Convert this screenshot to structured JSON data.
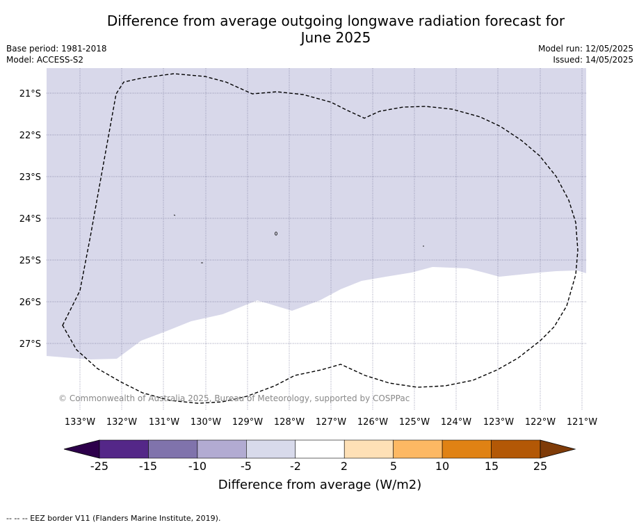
{
  "title_line1": "Difference from average outgoing longwave radiation forecast for",
  "title_line2": "June 2025",
  "base_period": "Base period: 1981-2018",
  "model": "Model: ACCESS-S2",
  "model_run": "Model run: 12/05/2025",
  "issued": "Issued: 14/05/2025",
  "copyright": "© Commonwealth of Australia 2025, Bureau of Meteorology, supported by COSPPac",
  "map": {
    "lat_labels": [
      "21°S",
      "22°S",
      "23°S",
      "24°S",
      "25°S",
      "26°S",
      "27°S"
    ],
    "lon_labels": [
      "133°W",
      "132°W",
      "131°W",
      "130°W",
      "129°W",
      "128°W",
      "127°W",
      "126°W",
      "125°W",
      "124°W",
      "123°W",
      "122°W",
      "121°W"
    ],
    "region_colors": {
      "-5_to_-2": "#d8d8ea",
      "-2_to_2": "#ffffff"
    }
  },
  "colorbar": {
    "label": "Difference from average (W/m2)",
    "ticks": [
      "-25",
      "-15",
      "-10",
      "-5",
      "-2",
      "2",
      "5",
      "10",
      "15",
      "25"
    ],
    "under_color": "#2d004b",
    "over_color": "#7f3b08",
    "colors": [
      "#542788",
      "#8073ac",
      "#b2abd2",
      "#d8daeb",
      "#ffffff",
      "#fee0b6",
      "#fdb863",
      "#e08214",
      "#b35806"
    ]
  },
  "legend_footer": "--  --  -- EEZ border V11 (Flanders Marine Institute, 2019)."
}
